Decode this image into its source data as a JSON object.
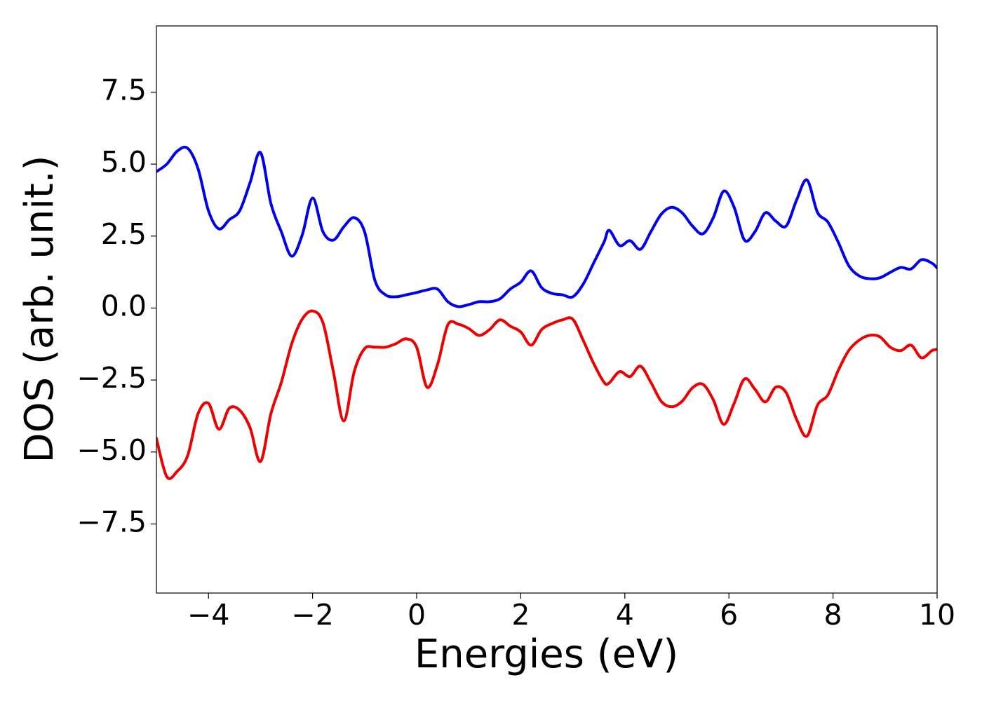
{
  "chart_data": {
    "type": "line",
    "xlabel": "Energies (eV)",
    "ylabel": "DOS (arb. unit.)",
    "x": [
      -5,
      -4.8,
      -4.6,
      -4.4,
      -4.2,
      -4,
      -3.8,
      -3.6,
      -3.4,
      -3.2,
      -3,
      -2.8,
      -2.6,
      -2.4,
      -2.2,
      -2,
      -1.8,
      -1.6,
      -1.4,
      -1.2,
      -1,
      -0.8,
      -0.6,
      -0.4,
      -0.2,
      0,
      0.2,
      0.4,
      0.6,
      0.8,
      1,
      1.2,
      1.4,
      1.6,
      1.8,
      2,
      2.2,
      2.4,
      2.6,
      2.8,
      3,
      3.2,
      3.4,
      3.6,
      3.7,
      3.9,
      4.1,
      4.3,
      4.5,
      4.7,
      4.9,
      5.1,
      5.3,
      5.5,
      5.7,
      5.9,
      6.1,
      6.3,
      6.5,
      6.7,
      6.9,
      7.1,
      7.3,
      7.5,
      7.7,
      7.9,
      8.1,
      8.3,
      8.5,
      8.7,
      8.9,
      9.1,
      9.3,
      9.5,
      9.7,
      9.9,
      10
    ],
    "series": [
      {
        "color": "#0000ee",
        "values": [
          4.74,
          5.0,
          5.45,
          5.55,
          4.84,
          3.38,
          2.75,
          3.07,
          3.38,
          4.36,
          5.4,
          3.63,
          2.65,
          1.8,
          2.53,
          3.82,
          2.65,
          2.36,
          2.82,
          3.14,
          2.65,
          0.95,
          0.46,
          0.39,
          0.46,
          0.54,
          0.63,
          0.66,
          0.22,
          0.05,
          0.12,
          0.22,
          0.22,
          0.32,
          0.66,
          0.9,
          1.29,
          0.71,
          0.51,
          0.46,
          0.39,
          0.83,
          1.56,
          2.29,
          2.7,
          2.17,
          2.34,
          2.04,
          2.65,
          3.26,
          3.5,
          3.31,
          2.85,
          2.58,
          3.14,
          4.06,
          3.5,
          2.36,
          2.65,
          3.31,
          3.02,
          2.85,
          3.75,
          4.45,
          3.33,
          2.99,
          2.29,
          1.48,
          1.12,
          1.02,
          1.05,
          1.24,
          1.41,
          1.36,
          1.68,
          1.56,
          1.39
        ]
      },
      {
        "color": "#ee0000",
        "values": [
          -4.53,
          -5.86,
          -5.67,
          -5.13,
          -3.67,
          -3.31,
          -4.21,
          -3.48,
          -3.55,
          -4.16,
          -5.33,
          -3.67,
          -2.58,
          -1.24,
          -0.39,
          -0.1,
          -0.51,
          -2.21,
          -3.92,
          -2.21,
          -1.41,
          -1.36,
          -1.36,
          -1.24,
          -1.07,
          -1.36,
          -2.75,
          -1.97,
          -0.58,
          -0.56,
          -0.71,
          -0.95,
          -0.75,
          -0.41,
          -0.63,
          -0.83,
          -1.29,
          -0.75,
          -0.54,
          -0.41,
          -0.39,
          -1.12,
          -1.92,
          -2.58,
          -2.6,
          -2.21,
          -2.38,
          -2.02,
          -2.58,
          -3.24,
          -3.43,
          -3.24,
          -2.77,
          -2.65,
          -3.19,
          -4.04,
          -3.31,
          -2.46,
          -2.82,
          -3.26,
          -2.75,
          -2.94,
          -3.87,
          -4.45,
          -3.38,
          -3.02,
          -2.17,
          -1.48,
          -1.12,
          -0.95,
          -1.0,
          -1.36,
          -1.48,
          -1.29,
          -1.73,
          -1.48,
          -1.44
        ]
      }
    ],
    "xlim": [
      -5,
      10
    ],
    "ylim": [
      -9.9,
      9.8
    ],
    "xticks": [
      {
        "value": -4,
        "label": "−4"
      },
      {
        "value": -2,
        "label": "−2"
      },
      0,
      2,
      4,
      6,
      8,
      10
    ],
    "yticks": [
      {
        "value": -7.5,
        "label": "−7.5"
      },
      {
        "value": -5,
        "label": "−5.0"
      },
      {
        "value": -2.5,
        "label": "−2.5"
      },
      {
        "value": 0,
        "label": "0.0"
      },
      2.5,
      {
        "value": 5,
        "label": "5.0"
      },
      7.5
    ],
    "grid": false
  }
}
